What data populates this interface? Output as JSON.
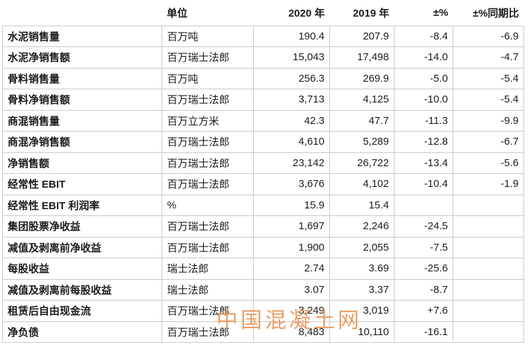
{
  "table": {
    "columns": {
      "name": "",
      "unit": "单位",
      "y2020": "2020 年",
      "y2019": "2019 年",
      "chg": "±%",
      "chg_lfl": "±%同期比"
    },
    "rows": [
      {
        "name": "水泥销售量",
        "unit": "百万吨",
        "y2020": "190.4",
        "y2019": "207.9",
        "chg": "-8.4",
        "chg_lfl": "-6.9"
      },
      {
        "name": "水泥净销售额",
        "unit": "百万瑞士法郎",
        "y2020": "15,043",
        "y2019": "17,498",
        "chg": "-14.0",
        "chg_lfl": "-4.7"
      },
      {
        "name": "骨料销售量",
        "unit": "百万吨",
        "y2020": "256.3",
        "y2019": "269.9",
        "chg": "-5.0",
        "chg_lfl": "-5.4"
      },
      {
        "name": "骨料净销售额",
        "unit": "百万瑞士法郎",
        "y2020": "3,713",
        "y2019": "4,125",
        "chg": "-10.0",
        "chg_lfl": "-5.4"
      },
      {
        "name": "商混销售量",
        "unit": "百万立方米",
        "y2020": "42.3",
        "y2019": "47.7",
        "chg": "-11.3",
        "chg_lfl": "-9.9"
      },
      {
        "name": "商混净销售额",
        "unit": "百万瑞士法郎",
        "y2020": "4,610",
        "y2019": "5,289",
        "chg": "-12.8",
        "chg_lfl": "-6.7"
      },
      {
        "name": "净销售额",
        "unit": "百万瑞士法郎",
        "y2020": "23,142",
        "y2019": "26,722",
        "chg": "-13.4",
        "chg_lfl": "-5.6"
      },
      {
        "name": "经常性 EBIT",
        "unit": "百万瑞士法郎",
        "y2020": "3,676",
        "y2019": "4,102",
        "chg": "-10.4",
        "chg_lfl": "-1.9"
      },
      {
        "name": "经常性 EBIT 利润率",
        "unit": "%",
        "y2020": "15.9",
        "y2019": "15.4",
        "chg": "",
        "chg_lfl": ""
      },
      {
        "name": "集团股票净收益",
        "unit": "百万瑞士法郎",
        "y2020": "1,697",
        "y2019": "2,246",
        "chg": "-24.5",
        "chg_lfl": ""
      },
      {
        "name": "减值及剥离前净收益",
        "unit": "百万瑞士法郎",
        "y2020": "1,900",
        "y2019": "2,055",
        "chg": "-7.5",
        "chg_lfl": ""
      },
      {
        "name": "每股收益",
        "unit": "瑞士法郎",
        "y2020": "2.74",
        "y2019": "3.69",
        "chg": "-25.6",
        "chg_lfl": ""
      },
      {
        "name": "减值及剥离前每股收益",
        "unit": "瑞士法郎",
        "y2020": "3.07",
        "y2019": "3.37",
        "chg": "-8.7",
        "chg_lfl": ""
      },
      {
        "name": "租赁后自由现金流",
        "unit": "百万瑞士法郎",
        "y2020": "3,249",
        "y2019": "3,019",
        "chg": "+7.6",
        "chg_lfl": ""
      },
      {
        "name": "净负债",
        "unit": "百万瑞士法郎",
        "y2020": "8,483",
        "y2019": "10,110",
        "chg": "-16.1",
        "chg_lfl": ""
      }
    ]
  },
  "watermark": {
    "text": "中国混凝土网",
    "color": "#e8955a",
    "opacity": "0.9"
  }
}
